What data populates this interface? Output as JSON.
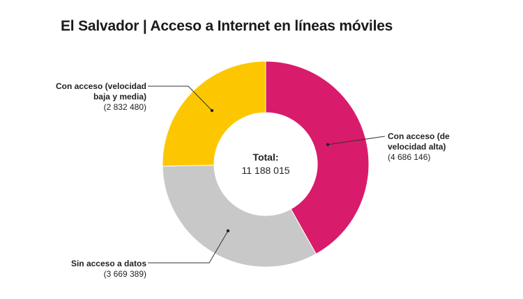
{
  "chart_data": {
    "type": "pie",
    "title": "El Salvador | Acceso a Internet en líneas móviles",
    "total_label": "Total:",
    "total_value": "11 188 015",
    "slices": [
      {
        "name": "Con acceso (de velocidad alta)",
        "label_lines": [
          "Con acceso (de",
          "velocidad alta)"
        ],
        "value": 4686146,
        "value_text": "(4 686 146)",
        "color": "#d81b6a"
      },
      {
        "name": "Sin acceso a datos",
        "label_lines": [
          "Sin acceso a datos"
        ],
        "value": 3669389,
        "value_text": "(3 669 389)",
        "color": "#c8c8c8"
      },
      {
        "name": "Con acceso (velocidad baja y media)",
        "label_lines": [
          "Con acceso (velocidad",
          "baja y media)"
        ],
        "value": 2832480,
        "value_text": "(2 832 480)",
        "color": "#fcc700"
      }
    ]
  }
}
